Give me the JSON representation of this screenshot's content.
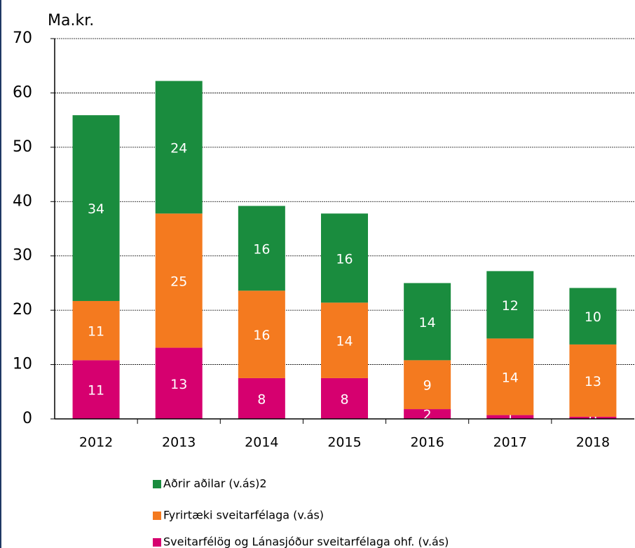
{
  "chart_data": {
    "type": "stacked_bar",
    "y_axis_label": "Ma.kr.",
    "categories": [
      "2012",
      "2013",
      "2014",
      "2015",
      "2016",
      "2017",
      "2018"
    ],
    "series": [
      {
        "name": "Sveitarfélög og Lánasjóður sveitarfélaga ohf. (v.ás)",
        "color": "#d6006f",
        "values": [
          10.8,
          13.1,
          7.5,
          7.5,
          1.8,
          0.7,
          0.4
        ],
        "value_labels": [
          "11",
          "13",
          "8",
          "8",
          "2",
          "1",
          "0"
        ]
      },
      {
        "name": "Fyrirtæki sveitarfélaga (v.ás)",
        "color": "#f47a1f",
        "values": [
          10.9,
          24.7,
          16.1,
          13.9,
          9.0,
          14.1,
          13.3
        ],
        "value_labels": [
          "11",
          "25",
          "16",
          "14",
          "9",
          "14",
          "13"
        ]
      },
      {
        "name": "Aðrir aðilar (v.ás)2",
        "color": "#1a8c3e",
        "values": [
          34.2,
          24.4,
          15.6,
          16.4,
          14.2,
          12.4,
          10.4
        ],
        "value_labels": [
          "34",
          "24",
          "16",
          "16",
          "14",
          "12",
          "10"
        ]
      }
    ],
    "ylim": [
      0,
      70
    ],
    "yticks": [
      0,
      10,
      20,
      30,
      40,
      50,
      60,
      70
    ],
    "grid": true
  }
}
